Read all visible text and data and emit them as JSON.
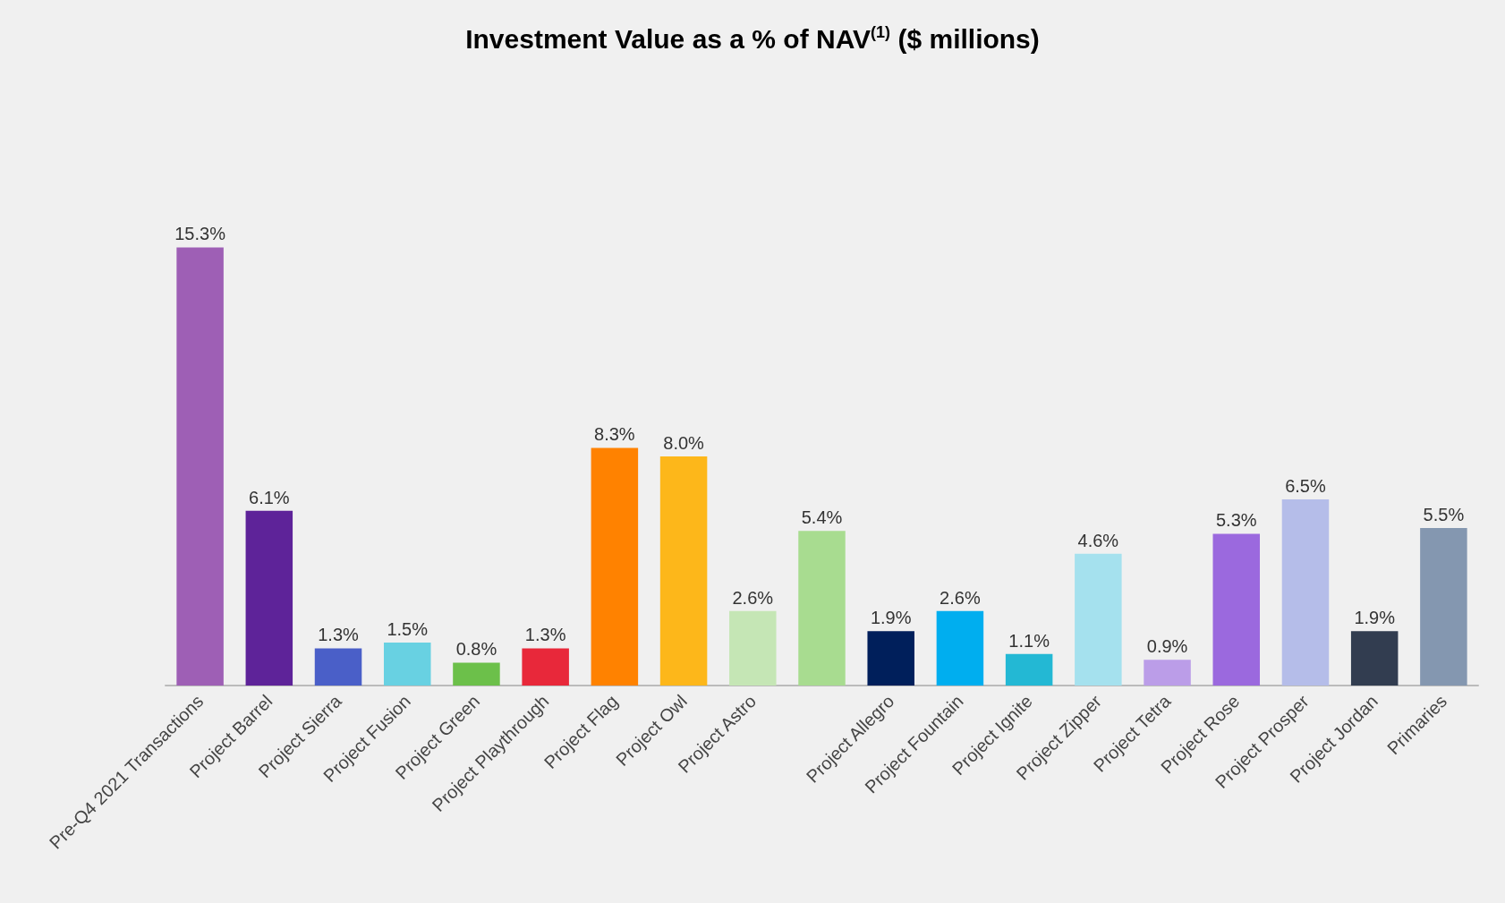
{
  "chart_data": {
    "type": "bar",
    "title": "Investment Value as a % of NAV$^{(1)}$ ($ millions)",
    "categories": [
      "Pre-Q4 2021 Transactions",
      "Project Barrel",
      "Project Sierra",
      "Project Fusion",
      "Project Green",
      "Project Playthrough",
      "Project Flag",
      "Project Owl",
      "Project Astro",
      null,
      "Project Allegro",
      "Project Fountain",
      "Project Ignite",
      "Project Zipper",
      "Project Tetra",
      "Project Rose",
      "Project Prosper",
      "Project Jordan",
      "Primaries"
    ],
    "values": [
      15.3,
      6.1,
      1.3,
      1.5,
      0.8,
      1.3,
      8.3,
      8.0,
      2.6,
      5.4,
      1.9,
      2.6,
      1.1,
      4.6,
      0.9,
      5.3,
      6.5,
      1.9,
      5.5
    ],
    "value_labels": [
      "15.3%",
      "6.1%",
      "1.3%",
      "1.5%",
      "0.8%",
      "1.3%",
      "8.3%",
      "8.0%",
      "2.6%",
      "5.4%",
      "1.9%",
      "2.6%",
      "1.1%",
      "4.6%",
      "0.9%",
      "5.3%",
      "6.5%",
      "1.9%",
      "5.5%"
    ],
    "colors": [
      "#9e5fb5",
      "#5e2399",
      "#4a5fc8",
      "#68d1e2",
      "#6cc04a",
      "#e8283a",
      "#ff8200",
      "#fdb71a",
      "#c5e6b5",
      "#a8dc90",
      "#001f5b",
      "#00aeef",
      "#23b8d4",
      "#a5e1ee",
      "#bb9de8",
      "#9b69de",
      "#b5bde9",
      "#323d50",
      "#8497b0"
    ]
  }
}
